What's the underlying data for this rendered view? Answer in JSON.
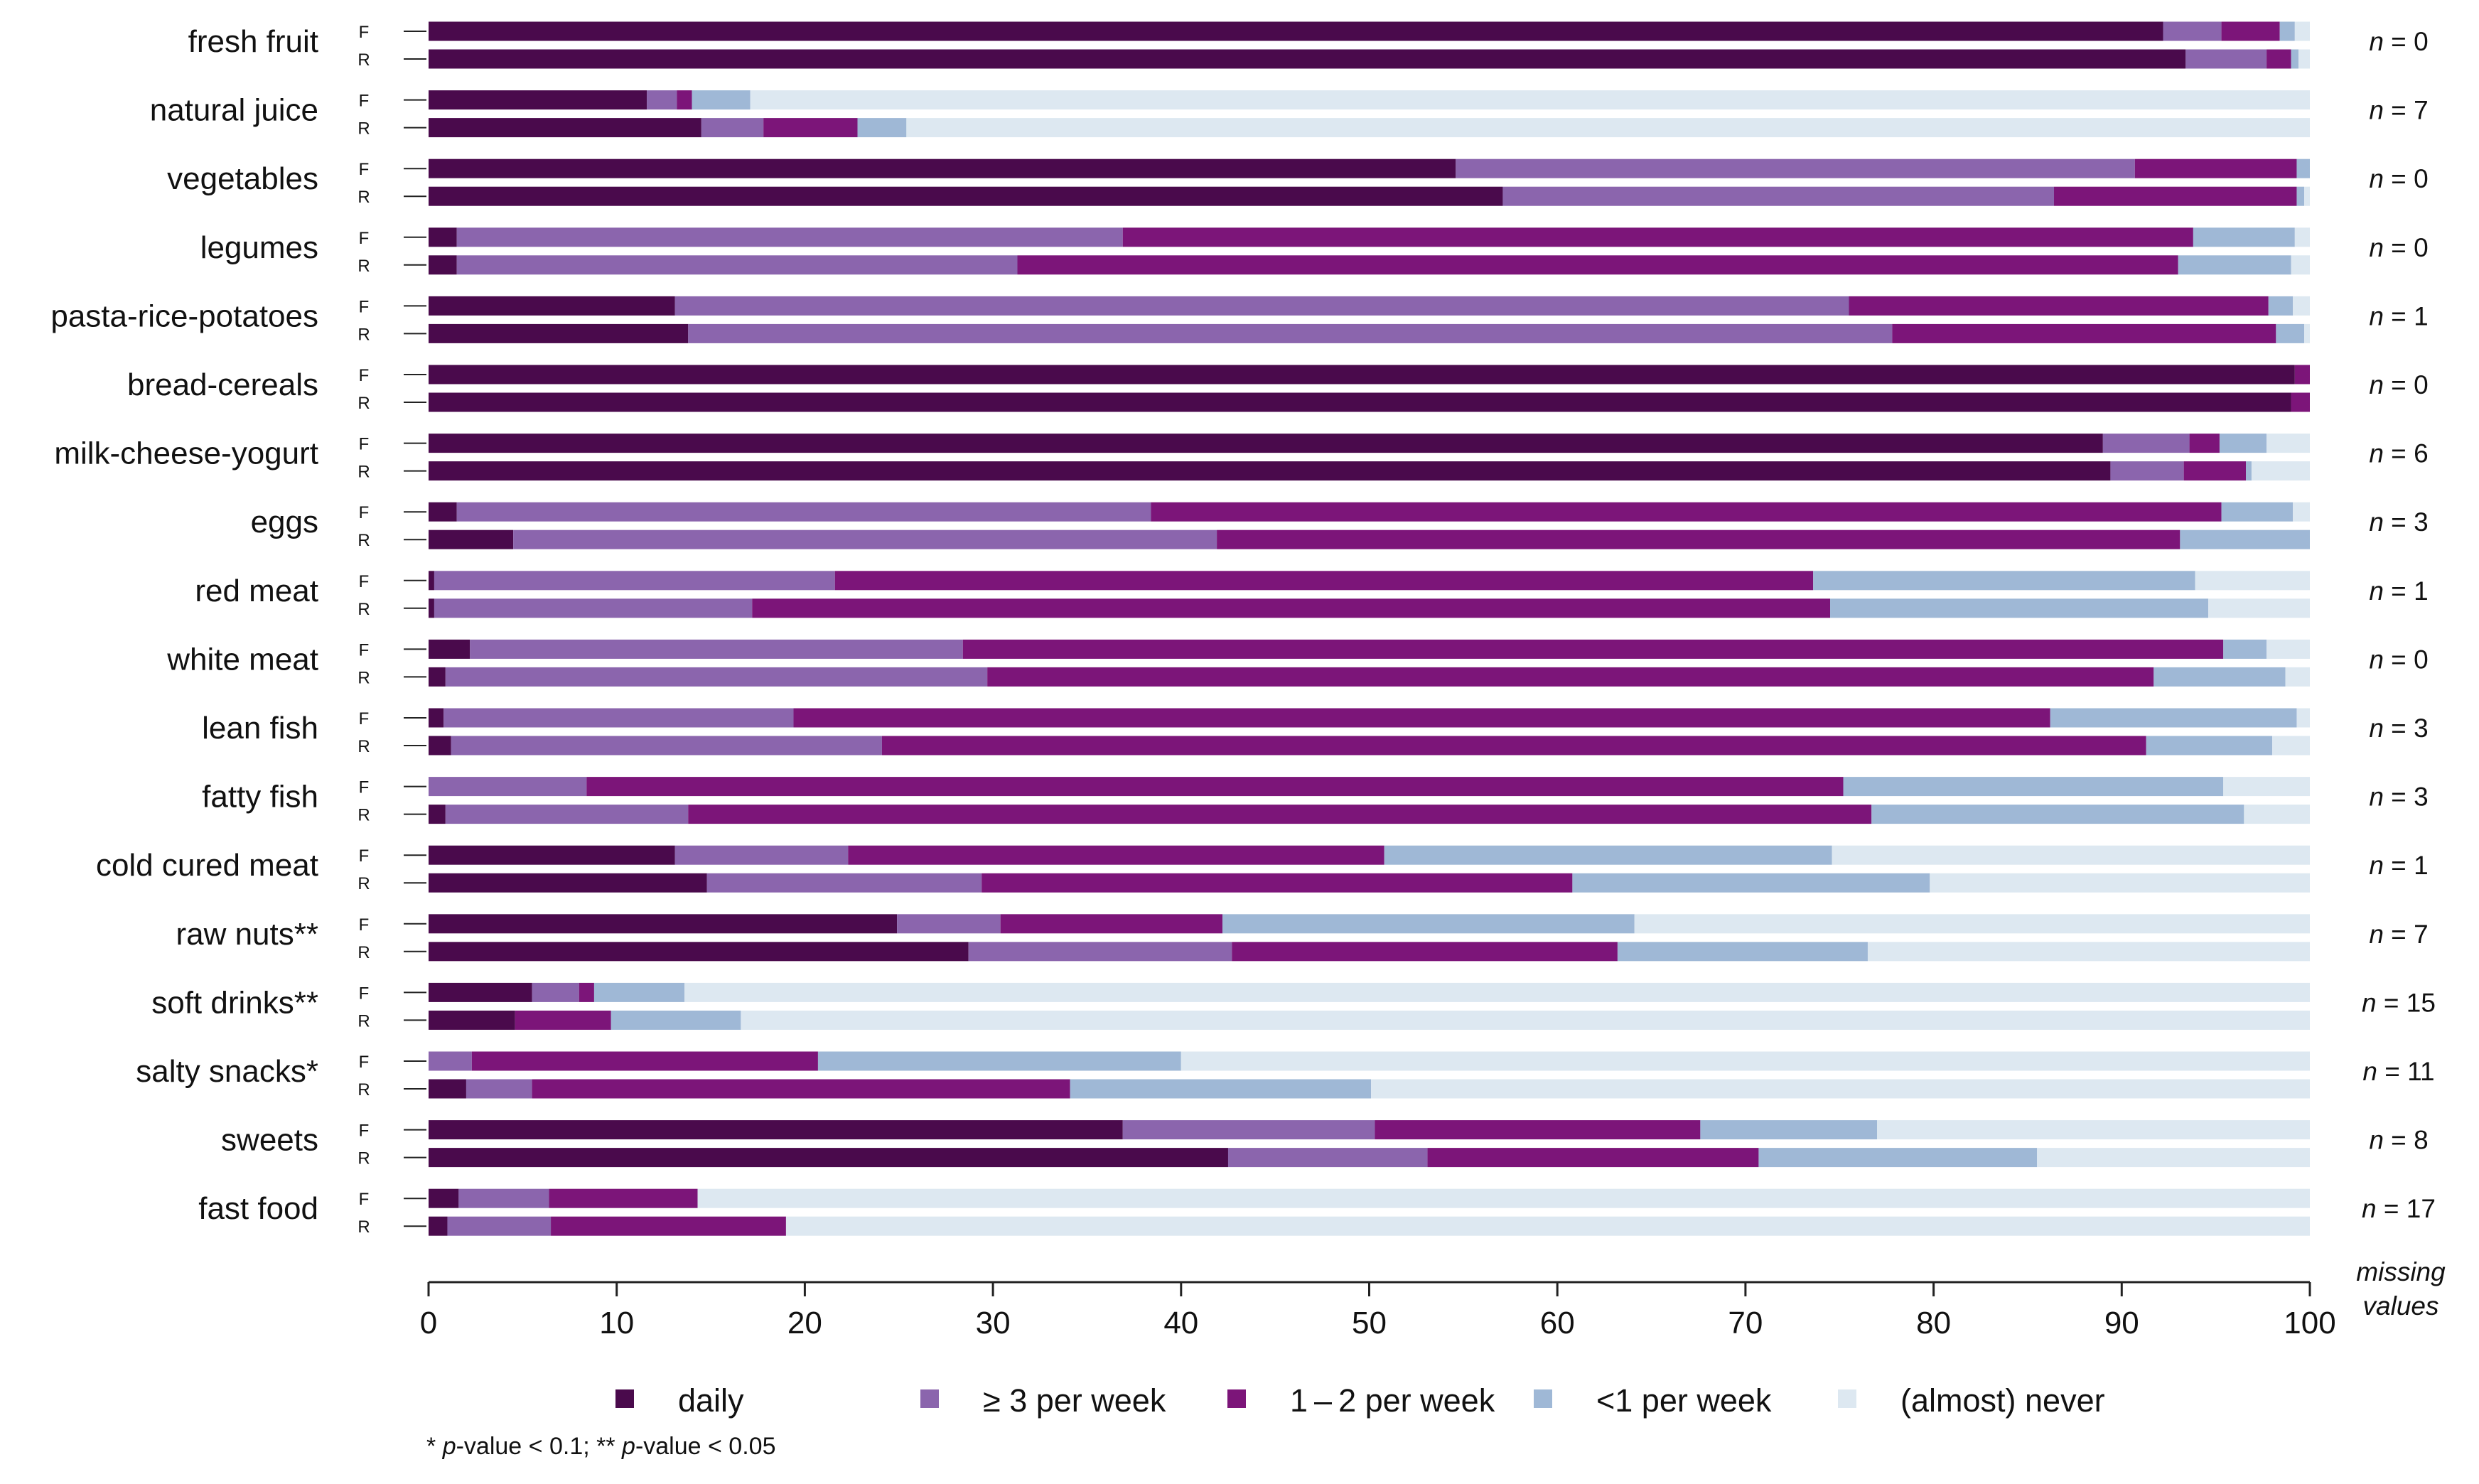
{
  "chart_data": {
    "type": "bar",
    "orientation": "horizontal",
    "stacked": true,
    "categories": [
      "fresh fruit",
      "natural juice",
      "vegetables",
      "legumes",
      "pasta-rice-potatoes",
      "bread-cereals",
      "milk-cheese-yogurt",
      "eggs",
      "red meat",
      "white meat",
      "lean fish",
      "fatty fish",
      "cold cured meat",
      "raw nuts**",
      "soft drinks**",
      "salty snacks*",
      "sweets",
      "fast food"
    ],
    "groups": [
      "F",
      "R"
    ],
    "series": [
      {
        "name": "daily",
        "color": "#4a0a4c"
      },
      {
        "name": "≥ 3 per week",
        "color": "#8b65ad"
      },
      {
        "name": "1 – 2 per week",
        "color": "#7c1579"
      },
      {
        "name": "<1 per week",
        "color": "#9fb8d6"
      },
      {
        "name": "(almost) never",
        "color": "#dde8f1"
      }
    ],
    "values": [
      {
        "F": [
          92.2,
          3.1,
          3.1,
          0.8,
          0.8
        ],
        "R": [
          93.4,
          4.3,
          1.3,
          0.4,
          0.6
        ]
      },
      {
        "F": [
          11.6,
          1.6,
          0.8,
          3.1,
          82.9
        ],
        "R": [
          14.5,
          3.3,
          5.0,
          2.6,
          74.6
        ]
      },
      {
        "F": [
          54.6,
          36.1,
          8.6,
          0.7,
          0.0
        ],
        "R": [
          57.1,
          29.3,
          12.9,
          0.4,
          0.3
        ]
      },
      {
        "F": [
          1.5,
          35.4,
          56.9,
          5.4,
          0.8
        ],
        "R": [
          1.5,
          29.8,
          61.7,
          6.0,
          1.0
        ]
      },
      {
        "F": [
          13.1,
          62.4,
          22.3,
          1.3,
          0.9
        ],
        "R": [
          13.8,
          64.0,
          20.4,
          1.5,
          0.3
        ]
      },
      {
        "F": [
          99.2,
          0.0,
          0.8,
          0.0,
          0.0
        ],
        "R": [
          99.0,
          0.0,
          1.0,
          0.0,
          0.0
        ]
      },
      {
        "F": [
          89.0,
          4.6,
          1.6,
          2.5,
          2.3
        ],
        "R": [
          89.4,
          3.9,
          3.3,
          0.3,
          3.1
        ]
      },
      {
        "F": [
          1.5,
          36.9,
          56.9,
          3.8,
          0.9
        ],
        "R": [
          4.5,
          37.4,
          51.2,
          6.9,
          0.0
        ]
      },
      {
        "F": [
          0.3,
          21.3,
          52.0,
          20.3,
          6.1
        ],
        "R": [
          0.3,
          16.9,
          57.3,
          20.1,
          5.4
        ]
      },
      {
        "F": [
          2.2,
          26.2,
          67.0,
          2.3,
          2.3
        ],
        "R": [
          0.9,
          28.8,
          62.0,
          7.0,
          1.3
        ]
      },
      {
        "F": [
          0.8,
          18.6,
          66.8,
          13.1,
          0.7
        ],
        "R": [
          1.2,
          22.9,
          67.2,
          6.7,
          2.0
        ]
      },
      {
        "F": [
          0.0,
          8.4,
          66.8,
          20.2,
          4.6
        ],
        "R": [
          0.9,
          12.9,
          62.9,
          19.8,
          3.5
        ]
      },
      {
        "F": [
          13.1,
          9.2,
          28.5,
          23.8,
          25.4
        ],
        "R": [
          14.8,
          14.6,
          31.4,
          19.0,
          20.2
        ]
      },
      {
        "F": [
          24.9,
          5.5,
          11.8,
          21.9,
          35.9
        ],
        "R": [
          28.7,
          14.0,
          20.5,
          13.3,
          23.5
        ]
      },
      {
        "F": [
          5.5,
          2.5,
          0.8,
          4.8,
          86.4
        ],
        "R": [
          4.6,
          0.0,
          5.1,
          6.9,
          83.4
        ]
      },
      {
        "F": [
          0.0,
          2.3,
          18.4,
          19.3,
          60.0
        ],
        "R": [
          2.0,
          3.5,
          28.6,
          16.0,
          49.9
        ]
      },
      {
        "F": [
          36.9,
          13.4,
          17.3,
          9.4,
          23.0
        ],
        "R": [
          42.5,
          10.6,
          17.6,
          14.8,
          14.5
        ]
      },
      {
        "F": [
          1.6,
          4.8,
          7.9,
          0.0,
          85.7
        ],
        "R": [
          1.0,
          5.5,
          12.5,
          0.0,
          81.0
        ]
      }
    ],
    "missing": [
      "0",
      "7",
      "0",
      "0",
      "1",
      "0",
      "6",
      "3",
      "1",
      "0",
      "3",
      "3",
      "1",
      "7",
      "15",
      "11",
      "8",
      "17"
    ],
    "missing_prefix": "n",
    "missing_eq": "= ",
    "missing_label_1": "missing",
    "missing_label_2": "values",
    "xlim": [
      0,
      100
    ],
    "xticks": [
      0,
      10,
      20,
      30,
      40,
      50,
      60,
      70,
      80,
      90,
      100
    ],
    "legend_position": "bottom",
    "footnote_parts": [
      "* ",
      "p",
      "-value < 0.1; ** ",
      "p",
      "-value < 0.05"
    ]
  }
}
